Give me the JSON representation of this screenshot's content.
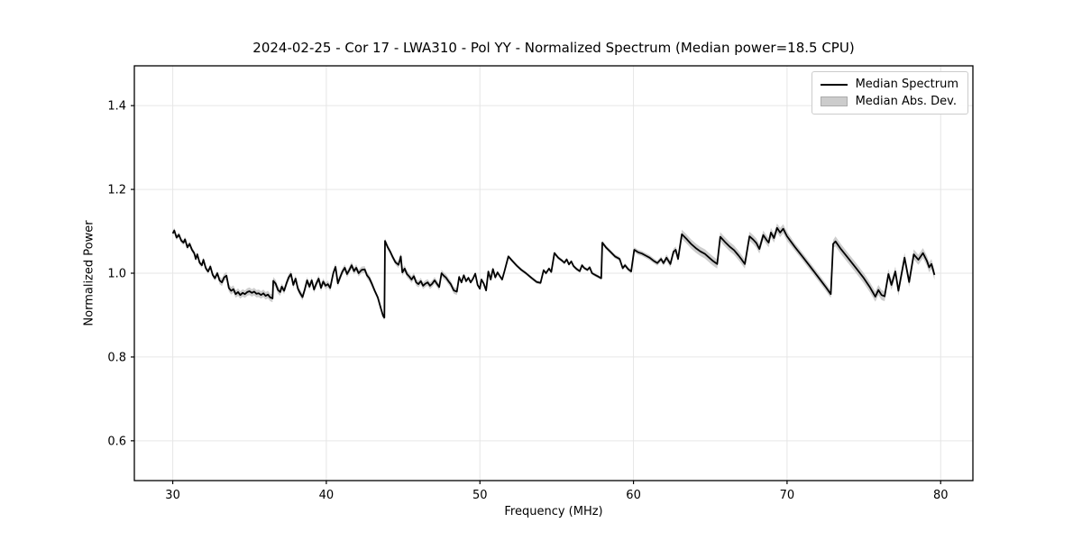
{
  "figure": {
    "background": "#ffffff"
  },
  "chart_data": {
    "type": "line",
    "title": "2024-02-25 - Cor 17 - LWA310 - Pol YY - Normalized Spectrum (Median power=18.5 CPU)",
    "xlabel": "Frequency (MHz)",
    "ylabel": "Normalized Power",
    "xlim": [
      27.5,
      82.1
    ],
    "ylim": [
      0.505,
      1.495
    ],
    "xticks": [
      30,
      40,
      50,
      60,
      70,
      80
    ],
    "yticks": [
      0.6,
      0.8,
      1.0,
      1.2,
      1.4
    ],
    "grid": true,
    "legend": {
      "position": "upper right",
      "entries": [
        {
          "label": "Median Spectrum",
          "type": "line",
          "color": "#000000"
        },
        {
          "label": "Median Abs. Dev.",
          "type": "band",
          "color": "#cccccc"
        }
      ]
    },
    "series": [
      {
        "name": "Median Spectrum",
        "type": "line",
        "color": "#000000",
        "points": [
          [
            30.0,
            1.095
          ],
          [
            30.1,
            1.102
          ],
          [
            30.25,
            1.085
          ],
          [
            30.4,
            1.092
          ],
          [
            30.55,
            1.078
          ],
          [
            30.7,
            1.073
          ],
          [
            30.8,
            1.081
          ],
          [
            30.95,
            1.062
          ],
          [
            31.1,
            1.07
          ],
          [
            31.25,
            1.056
          ],
          [
            31.4,
            1.048
          ],
          [
            31.5,
            1.034
          ],
          [
            31.6,
            1.045
          ],
          [
            31.75,
            1.025
          ],
          [
            31.9,
            1.019
          ],
          [
            32.0,
            1.032
          ],
          [
            32.15,
            1.012
          ],
          [
            32.3,
            1.004
          ],
          [
            32.45,
            1.016
          ],
          [
            32.6,
            0.996
          ],
          [
            32.75,
            0.988
          ],
          [
            32.9,
            1.0
          ],
          [
            33.05,
            0.983
          ],
          [
            33.2,
            0.978
          ],
          [
            33.35,
            0.99
          ],
          [
            33.5,
            0.994
          ],
          [
            33.65,
            0.965
          ],
          [
            33.8,
            0.958
          ],
          [
            33.95,
            0.962
          ],
          [
            34.1,
            0.95
          ],
          [
            34.25,
            0.955
          ],
          [
            34.4,
            0.948
          ],
          [
            34.55,
            0.953
          ],
          [
            34.7,
            0.95
          ],
          [
            34.85,
            0.955
          ],
          [
            35.0,
            0.957
          ],
          [
            35.15,
            0.953
          ],
          [
            35.3,
            0.956
          ],
          [
            35.45,
            0.951
          ],
          [
            35.6,
            0.952
          ],
          [
            35.75,
            0.948
          ],
          [
            35.9,
            0.952
          ],
          [
            36.05,
            0.946
          ],
          [
            36.2,
            0.949
          ],
          [
            36.35,
            0.942
          ],
          [
            36.5,
            0.94
          ],
          [
            36.55,
            0.982
          ],
          [
            36.7,
            0.975
          ],
          [
            36.85,
            0.96
          ],
          [
            37.0,
            0.955
          ],
          [
            37.1,
            0.968
          ],
          [
            37.25,
            0.958
          ],
          [
            37.4,
            0.975
          ],
          [
            37.55,
            0.99
          ],
          [
            37.7,
            0.998
          ],
          [
            37.85,
            0.972
          ],
          [
            38.0,
            0.987
          ],
          [
            38.15,
            0.963
          ],
          [
            38.3,
            0.952
          ],
          [
            38.45,
            0.943
          ],
          [
            38.6,
            0.962
          ],
          [
            38.75,
            0.983
          ],
          [
            38.9,
            0.968
          ],
          [
            39.05,
            0.983
          ],
          [
            39.2,
            0.961
          ],
          [
            39.35,
            0.975
          ],
          [
            39.5,
            0.987
          ],
          [
            39.65,
            0.965
          ],
          [
            39.8,
            0.98
          ],
          [
            39.95,
            0.97
          ],
          [
            40.1,
            0.974
          ],
          [
            40.25,
            0.965
          ],
          [
            40.45,
            1.0
          ],
          [
            40.6,
            1.015
          ],
          [
            40.75,
            0.976
          ],
          [
            40.9,
            0.99
          ],
          [
            41.05,
            1.004
          ],
          [
            41.2,
            1.013
          ],
          [
            41.35,
            0.998
          ],
          [
            41.5,
            1.008
          ],
          [
            41.65,
            1.019
          ],
          [
            41.8,
            1.005
          ],
          [
            41.95,
            1.013
          ],
          [
            42.1,
            1.0
          ],
          [
            42.3,
            1.008
          ],
          [
            42.5,
            1.009
          ],
          [
            42.65,
            0.995
          ],
          [
            42.8,
            0.988
          ],
          [
            42.95,
            0.976
          ],
          [
            43.15,
            0.958
          ],
          [
            43.35,
            0.942
          ],
          [
            43.55,
            0.916
          ],
          [
            43.7,
            0.898
          ],
          [
            43.78,
            0.894
          ],
          [
            43.82,
            1.077
          ],
          [
            44.0,
            1.062
          ],
          [
            44.15,
            1.052
          ],
          [
            44.3,
            1.04
          ],
          [
            44.5,
            1.026
          ],
          [
            44.7,
            1.02
          ],
          [
            44.85,
            1.04
          ],
          [
            44.95,
            1.002
          ],
          [
            45.1,
            1.011
          ],
          [
            45.25,
            0.998
          ],
          [
            45.4,
            0.992
          ],
          [
            45.55,
            0.985
          ],
          [
            45.7,
            0.993
          ],
          [
            45.85,
            0.978
          ],
          [
            46.0,
            0.974
          ],
          [
            46.15,
            0.981
          ],
          [
            46.3,
            0.97
          ],
          [
            46.45,
            0.975
          ],
          [
            46.6,
            0.978
          ],
          [
            46.75,
            0.97
          ],
          [
            46.9,
            0.975
          ],
          [
            47.05,
            0.983
          ],
          [
            47.2,
            0.975
          ],
          [
            47.35,
            0.967
          ],
          [
            47.5,
            1.0
          ],
          [
            47.65,
            0.994
          ],
          [
            47.8,
            0.989
          ],
          [
            47.95,
            0.981
          ],
          [
            48.1,
            0.974
          ],
          [
            48.3,
            0.959
          ],
          [
            48.5,
            0.956
          ],
          [
            48.65,
            0.991
          ],
          [
            48.8,
            0.978
          ],
          [
            48.95,
            0.995
          ],
          [
            49.1,
            0.981
          ],
          [
            49.25,
            0.989
          ],
          [
            49.4,
            0.978
          ],
          [
            49.55,
            0.987
          ],
          [
            49.7,
            0.999
          ],
          [
            49.85,
            0.972
          ],
          [
            50.0,
            0.963
          ],
          [
            50.1,
            0.985
          ],
          [
            50.25,
            0.975
          ],
          [
            50.4,
            0.959
          ],
          [
            50.55,
            1.004
          ],
          [
            50.7,
            0.985
          ],
          [
            50.85,
            1.01
          ],
          [
            51.0,
            0.99
          ],
          [
            51.15,
            1.002
          ],
          [
            51.3,
            0.993
          ],
          [
            51.45,
            0.985
          ],
          [
            51.6,
            1.005
          ],
          [
            51.85,
            1.04
          ],
          [
            52.1,
            1.03
          ],
          [
            52.4,
            1.018
          ],
          [
            52.7,
            1.008
          ],
          [
            53.0,
            1.0
          ],
          [
            53.35,
            0.989
          ],
          [
            53.7,
            0.979
          ],
          [
            53.95,
            0.977
          ],
          [
            54.15,
            1.007
          ],
          [
            54.3,
            1.0
          ],
          [
            54.5,
            1.011
          ],
          [
            54.65,
            1.003
          ],
          [
            54.85,
            1.048
          ],
          [
            55.1,
            1.037
          ],
          [
            55.35,
            1.03
          ],
          [
            55.5,
            1.025
          ],
          [
            55.65,
            1.033
          ],
          [
            55.8,
            1.021
          ],
          [
            55.95,
            1.028
          ],
          [
            56.1,
            1.017
          ],
          [
            56.3,
            1.01
          ],
          [
            56.5,
            1.005
          ],
          [
            56.65,
            1.019
          ],
          [
            56.8,
            1.012
          ],
          [
            57.0,
            1.008
          ],
          [
            57.15,
            1.014
          ],
          [
            57.3,
            1.0
          ],
          [
            57.5,
            0.996
          ],
          [
            57.7,
            0.992
          ],
          [
            57.9,
            0.988
          ],
          [
            57.97,
            1.073
          ],
          [
            58.2,
            1.062
          ],
          [
            58.5,
            1.051
          ],
          [
            58.8,
            1.04
          ],
          [
            59.1,
            1.034
          ],
          [
            59.3,
            1.012
          ],
          [
            59.45,
            1.019
          ],
          [
            59.65,
            1.01
          ],
          [
            59.85,
            1.004
          ],
          [
            60.05,
            1.056
          ],
          [
            60.3,
            1.05
          ],
          [
            60.55,
            1.047
          ],
          [
            60.8,
            1.042
          ],
          [
            61.05,
            1.037
          ],
          [
            61.3,
            1.03
          ],
          [
            61.55,
            1.024
          ],
          [
            61.8,
            1.034
          ],
          [
            61.95,
            1.024
          ],
          [
            62.15,
            1.037
          ],
          [
            62.4,
            1.022
          ],
          [
            62.6,
            1.051
          ],
          [
            62.75,
            1.056
          ],
          [
            62.9,
            1.034
          ],
          [
            63.15,
            1.093
          ],
          [
            63.45,
            1.082
          ],
          [
            63.75,
            1.07
          ],
          [
            64.05,
            1.06
          ],
          [
            64.35,
            1.052
          ],
          [
            64.65,
            1.046
          ],
          [
            64.9,
            1.038
          ],
          [
            65.15,
            1.03
          ],
          [
            65.45,
            1.022
          ],
          [
            65.65,
            1.087
          ],
          [
            65.95,
            1.075
          ],
          [
            66.25,
            1.064
          ],
          [
            66.55,
            1.055
          ],
          [
            66.85,
            1.042
          ],
          [
            67.05,
            1.032
          ],
          [
            67.25,
            1.022
          ],
          [
            67.55,
            1.088
          ],
          [
            67.8,
            1.08
          ],
          [
            68.0,
            1.072
          ],
          [
            68.2,
            1.058
          ],
          [
            68.45,
            1.091
          ],
          [
            68.65,
            1.08
          ],
          [
            68.8,
            1.073
          ],
          [
            68.95,
            1.097
          ],
          [
            69.15,
            1.084
          ],
          [
            69.35,
            1.108
          ],
          [
            69.55,
            1.097
          ],
          [
            69.75,
            1.106
          ],
          [
            70.0,
            1.088
          ],
          [
            70.5,
            1.063
          ],
          [
            71.0,
            1.04
          ],
          [
            71.5,
            1.016
          ],
          [
            72.0,
            0.992
          ],
          [
            72.5,
            0.968
          ],
          [
            72.85,
            0.95
          ],
          [
            73.0,
            1.07
          ],
          [
            73.15,
            1.076
          ],
          [
            73.5,
            1.058
          ],
          [
            74.0,
            1.035
          ],
          [
            74.5,
            1.012
          ],
          [
            75.0,
            0.988
          ],
          [
            75.4,
            0.966
          ],
          [
            75.75,
            0.944
          ],
          [
            75.95,
            0.96
          ],
          [
            76.15,
            0.948
          ],
          [
            76.35,
            0.945
          ],
          [
            76.6,
            0.998
          ],
          [
            76.8,
            0.972
          ],
          [
            77.05,
            1.004
          ],
          [
            77.25,
            0.958
          ],
          [
            77.65,
            1.037
          ],
          [
            77.95,
            0.979
          ],
          [
            78.25,
            1.045
          ],
          [
            78.55,
            1.032
          ],
          [
            78.85,
            1.048
          ],
          [
            79.1,
            1.03
          ],
          [
            79.25,
            1.014
          ],
          [
            79.4,
            1.022
          ],
          [
            79.6,
            0.996
          ]
        ]
      },
      {
        "name": "Median Abs. Dev.",
        "type": "band",
        "around": "Median Spectrum",
        "color": "#c8c8c8",
        "half_width_segments": [
          {
            "from": 30.0,
            "to": 33.0,
            "half_width": 0.006
          },
          {
            "from": 33.0,
            "to": 37.0,
            "half_width": 0.009
          },
          {
            "from": 37.0,
            "to": 43.0,
            "half_width": 0.008
          },
          {
            "from": 43.0,
            "to": 44.5,
            "half_width": 0.006
          },
          {
            "from": 44.5,
            "to": 48.5,
            "half_width": 0.008
          },
          {
            "from": 48.5,
            "to": 58.0,
            "half_width": 0.004
          },
          {
            "from": 58.0,
            "to": 60.0,
            "half_width": 0.005
          },
          {
            "from": 60.0,
            "to": 62.0,
            "half_width": 0.006
          },
          {
            "from": 62.0,
            "to": 63.0,
            "half_width": 0.008
          },
          {
            "from": 63.0,
            "to": 70.0,
            "half_width": 0.011
          },
          {
            "from": 70.0,
            "to": 73.0,
            "half_width": 0.009
          },
          {
            "from": 73.0,
            "to": 79.6,
            "half_width": 0.012
          }
        ]
      }
    ]
  },
  "colors": {
    "line": "#000000",
    "band": "#c8c8c8",
    "grid": "#e6e6e6",
    "spine": "#000000",
    "tick_text": "#000000",
    "legend_border": "#cccccc",
    "background": "#ffffff"
  }
}
